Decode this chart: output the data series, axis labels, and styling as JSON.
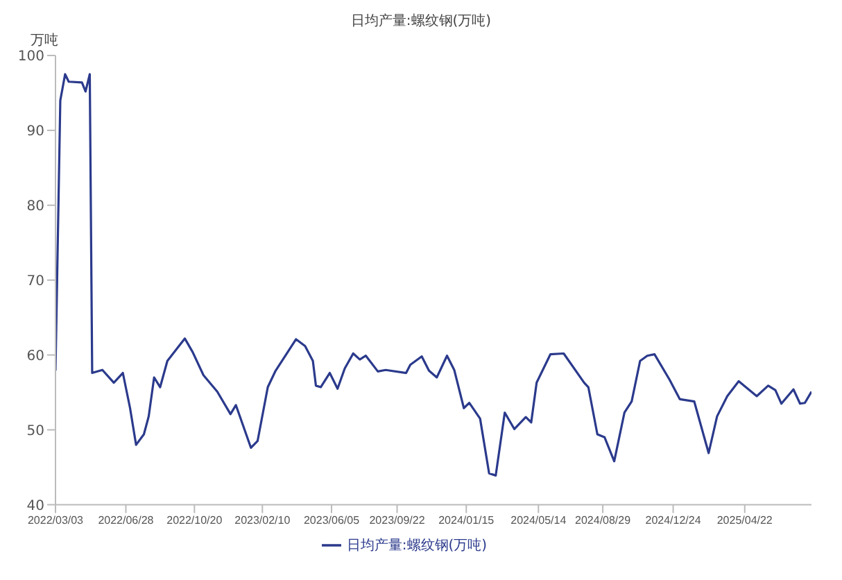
{
  "chart_data": {
    "type": "line",
    "title": "日均产量:螺纹钢(万吨)",
    "ylabel": "万吨",
    "x": [
      "2022-03-03",
      "2022-03-11",
      "2022-03-19",
      "2022-03-25",
      "2022-04-16",
      "2022-04-22",
      "2022-04-29",
      "2022-05-03",
      "2022-05-20",
      "2022-06-08",
      "2022-06-23",
      "2022-07-05",
      "2022-07-15",
      "2022-07-28",
      "2022-08-05",
      "2022-08-14",
      "2022-08-24",
      "2022-09-05",
      "2022-10-04",
      "2022-10-17",
      "2022-11-04",
      "2022-11-27",
      "2022-12-19",
      "2022-12-28",
      "2023-01-22",
      "2023-02-02",
      "2023-02-19",
      "2023-03-04",
      "2023-04-07",
      "2023-04-22",
      "2023-05-05",
      "2023-05-10",
      "2023-05-18",
      "2023-06-02",
      "2023-06-15",
      "2023-06-27",
      "2023-07-11",
      "2023-07-22",
      "2023-08-01",
      "2023-08-21",
      "2023-09-03",
      "2023-10-07",
      "2023-10-14",
      "2023-11-02",
      "2023-11-14",
      "2023-11-27",
      "2023-12-14",
      "2023-12-26",
      "2024-01-11",
      "2024-01-20",
      "2024-02-07",
      "2024-02-22",
      "2024-03-04",
      "2024-03-19",
      "2024-04-04",
      "2024-04-23",
      "2024-05-02",
      "2024-05-11",
      "2024-06-03",
      "2024-06-25",
      "2024-07-29",
      "2024-08-05",
      "2024-08-20",
      "2024-09-01",
      "2024-09-17",
      "2024-10-04",
      "2024-10-16",
      "2024-10-30",
      "2024-11-11",
      "2024-11-23",
      "2024-12-18",
      "2025-01-04",
      "2025-01-28",
      "2025-02-21",
      "2025-03-07",
      "2025-03-24",
      "2025-04-12",
      "2025-05-12",
      "2025-05-31",
      "2025-06-12",
      "2025-06-22",
      "2025-07-12",
      "2025-07-23",
      "2025-07-31",
      "2025-08-11"
    ],
    "series": [
      {
        "name": "日均产量:螺纹钢(万吨)",
        "color": "#2b3a8c",
        "values": [
          57.9,
          94.0,
          97.5,
          96.5,
          96.4,
          95.2,
          97.5,
          57.6,
          58.0,
          56.3,
          57.6,
          52.9,
          48.0,
          49.4,
          51.8,
          57.0,
          55.7,
          59.2,
          62.2,
          60.4,
          57.3,
          55.1,
          52.1,
          53.3,
          47.6,
          48.5,
          55.7,
          57.9,
          62.1,
          61.2,
          59.2,
          55.9,
          55.7,
          57.6,
          55.5,
          58.2,
          60.2,
          59.4,
          59.9,
          57.8,
          58.0,
          57.6,
          58.7,
          59.8,
          57.9,
          57.0,
          59.9,
          58.0,
          52.9,
          53.6,
          51.5,
          44.2,
          43.9,
          52.3,
          50.1,
          51.7,
          51.0,
          56.3,
          60.1,
          60.2,
          56.3,
          55.7,
          49.4,
          49.0,
          45.8,
          52.3,
          53.8,
          59.2,
          59.9,
          60.1,
          56.7,
          54.1,
          53.8,
          46.9,
          51.8,
          54.5,
          56.5,
          54.5,
          55.9,
          55.3,
          53.5,
          55.4,
          53.5,
          53.6,
          55.1
        ]
      }
    ],
    "xlim": [
      "2022-03-03",
      "2025-08-11"
    ],
    "xticks": [
      {
        "value": "2022-03-03",
        "label": "2022/03/03"
      },
      {
        "value": "2022-06-28",
        "label": "2022/06/28"
      },
      {
        "value": "2022-10-20",
        "label": "2022/10/20"
      },
      {
        "value": "2023-02-10",
        "label": "2023/02/10"
      },
      {
        "value": "2023-06-05",
        "label": "2023/06/05"
      },
      {
        "value": "2023-09-22",
        "label": "2023/09/22"
      },
      {
        "value": "2024-01-15",
        "label": "2024/01/15"
      },
      {
        "value": "2024-05-14",
        "label": "2024/05/14"
      },
      {
        "value": "2024-08-29",
        "label": "2024/08/29"
      },
      {
        "value": "2024-12-24",
        "label": "2024/12/24"
      },
      {
        "value": "2025-04-22",
        "label": "2025/04/22"
      }
    ],
    "ylim": [
      40,
      100
    ],
    "yticks": [
      40,
      50,
      60,
      70,
      80,
      90,
      100
    ],
    "grid": false,
    "legend": "bottom",
    "marker": "none",
    "line_style": "solid"
  }
}
